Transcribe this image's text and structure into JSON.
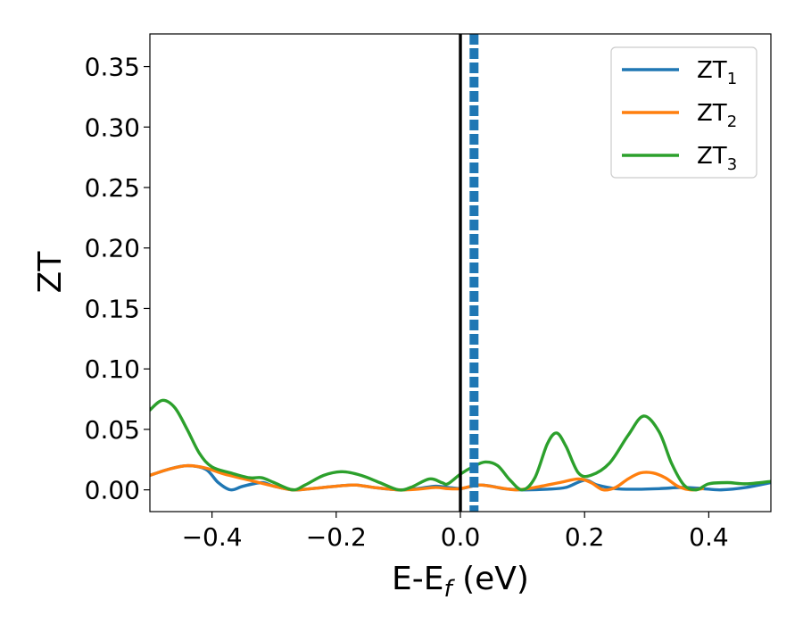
{
  "chart_data": {
    "type": "line",
    "xlabel": {
      "main": "E-E",
      "sub": "f",
      "suffix": " (eV)"
    },
    "ylabel": "ZT",
    "xlim": [
      -0.5,
      0.5
    ],
    "ylim": [
      -0.018,
      0.377
    ],
    "xticks": [
      -0.4,
      -0.2,
      0.0,
      0.2,
      0.4
    ],
    "xtick_labels": [
      "−0.4",
      "−0.2",
      "0.0",
      "0.2",
      "0.4"
    ],
    "yticks": [
      0.0,
      0.05,
      0.1,
      0.15,
      0.2,
      0.25,
      0.3,
      0.35
    ],
    "ytick_labels": [
      "0.00",
      "0.05",
      "0.10",
      "0.15",
      "0.20",
      "0.25",
      "0.30",
      "0.35"
    ],
    "grid": false,
    "legend": {
      "position": "top-right",
      "entries": [
        {
          "main": "ZT",
          "sub": "1",
          "color": "#1f77b4"
        },
        {
          "main": "ZT",
          "sub": "2",
          "color": "#ff7f0e"
        },
        {
          "main": "ZT",
          "sub": "3",
          "color": "#2ca02c"
        }
      ]
    },
    "vlines": [
      {
        "x": 0.0,
        "style": "solid",
        "color": "#000000"
      },
      {
        "x": 0.022,
        "style": "dashed",
        "color": "#1f77b4"
      }
    ],
    "series": [
      {
        "name": "ZT1",
        "color": "#1f77b4",
        "points": [
          [
            -0.5,
            0.012
          ],
          [
            -0.47,
            0.017
          ],
          [
            -0.44,
            0.02
          ],
          [
            -0.41,
            0.017
          ],
          [
            -0.39,
            0.006
          ],
          [
            -0.37,
            0.0
          ],
          [
            -0.35,
            0.003
          ],
          [
            -0.32,
            0.006
          ],
          [
            -0.3,
            0.003
          ],
          [
            -0.27,
            0.0
          ],
          [
            -0.24,
            0.001
          ],
          [
            -0.2,
            0.003
          ],
          [
            -0.17,
            0.004
          ],
          [
            -0.14,
            0.002
          ],
          [
            -0.1,
            0.0
          ],
          [
            -0.07,
            0.001
          ],
          [
            -0.04,
            0.003
          ],
          [
            -0.02,
            0.002
          ],
          [
            0.0,
            0.001
          ],
          [
            0.01,
            0.002
          ],
          [
            0.03,
            0.004
          ],
          [
            0.05,
            0.003
          ],
          [
            0.07,
            0.001
          ],
          [
            0.1,
            0.0
          ],
          [
            0.14,
            0.0005
          ],
          [
            0.17,
            0.002
          ],
          [
            0.2,
            0.008
          ],
          [
            0.22,
            0.004
          ],
          [
            0.25,
            0.001
          ],
          [
            0.28,
            0.0005
          ],
          [
            0.32,
            0.001
          ],
          [
            0.36,
            0.002
          ],
          [
            0.39,
            0.001
          ],
          [
            0.42,
            0.0
          ],
          [
            0.46,
            0.002
          ],
          [
            0.5,
            0.006
          ]
        ]
      },
      {
        "name": "ZT2",
        "color": "#ff7f0e",
        "points": [
          [
            -0.5,
            0.012
          ],
          [
            -0.47,
            0.017
          ],
          [
            -0.44,
            0.02
          ],
          [
            -0.41,
            0.018
          ],
          [
            -0.38,
            0.013
          ],
          [
            -0.34,
            0.008
          ],
          [
            -0.3,
            0.003
          ],
          [
            -0.27,
            0.0
          ],
          [
            -0.24,
            0.001
          ],
          [
            -0.2,
            0.003
          ],
          [
            -0.17,
            0.004
          ],
          [
            -0.14,
            0.002
          ],
          [
            -0.1,
            0.0
          ],
          [
            -0.07,
            0.0005
          ],
          [
            -0.04,
            0.002
          ],
          [
            -0.02,
            0.001
          ],
          [
            0.0,
            0.001
          ],
          [
            0.03,
            0.004
          ],
          [
            0.06,
            0.002
          ],
          [
            0.09,
            0.0
          ],
          [
            0.12,
            0.002
          ],
          [
            0.16,
            0.006
          ],
          [
            0.19,
            0.009
          ],
          [
            0.21,
            0.006
          ],
          [
            0.23,
            0.0
          ],
          [
            0.25,
            0.002
          ],
          [
            0.27,
            0.009
          ],
          [
            0.29,
            0.014
          ],
          [
            0.31,
            0.014
          ],
          [
            0.33,
            0.01
          ],
          [
            0.35,
            0.003
          ],
          [
            0.37,
            0.0
          ],
          [
            0.39,
            0.001
          ]
        ]
      },
      {
        "name": "ZT3",
        "color": "#2ca02c",
        "points": [
          [
            -0.5,
            0.066
          ],
          [
            -0.48,
            0.074
          ],
          [
            -0.46,
            0.068
          ],
          [
            -0.44,
            0.05
          ],
          [
            -0.42,
            0.03
          ],
          [
            -0.4,
            0.019
          ],
          [
            -0.37,
            0.014
          ],
          [
            -0.34,
            0.01
          ],
          [
            -0.32,
            0.01
          ],
          [
            -0.3,
            0.006
          ],
          [
            -0.27,
            0.0
          ],
          [
            -0.25,
            0.004
          ],
          [
            -0.22,
            0.012
          ],
          [
            -0.19,
            0.015
          ],
          [
            -0.16,
            0.012
          ],
          [
            -0.13,
            0.006
          ],
          [
            -0.1,
            0.0
          ],
          [
            -0.08,
            0.002
          ],
          [
            -0.05,
            0.009
          ],
          [
            -0.03,
            0.006
          ],
          [
            -0.02,
            0.005
          ],
          [
            0.0,
            0.013
          ],
          [
            0.02,
            0.019
          ],
          [
            0.04,
            0.023
          ],
          [
            0.06,
            0.02
          ],
          [
            0.08,
            0.008
          ],
          [
            0.1,
            0.0
          ],
          [
            0.12,
            0.01
          ],
          [
            0.14,
            0.038
          ],
          [
            0.155,
            0.047
          ],
          [
            0.17,
            0.036
          ],
          [
            0.19,
            0.014
          ],
          [
            0.21,
            0.012
          ],
          [
            0.24,
            0.022
          ],
          [
            0.27,
            0.045
          ],
          [
            0.295,
            0.061
          ],
          [
            0.32,
            0.048
          ],
          [
            0.34,
            0.022
          ],
          [
            0.36,
            0.004
          ],
          [
            0.38,
            0.0
          ],
          [
            0.4,
            0.005
          ],
          [
            0.43,
            0.006
          ],
          [
            0.46,
            0.005
          ],
          [
            0.5,
            0.007
          ]
        ]
      }
    ]
  }
}
